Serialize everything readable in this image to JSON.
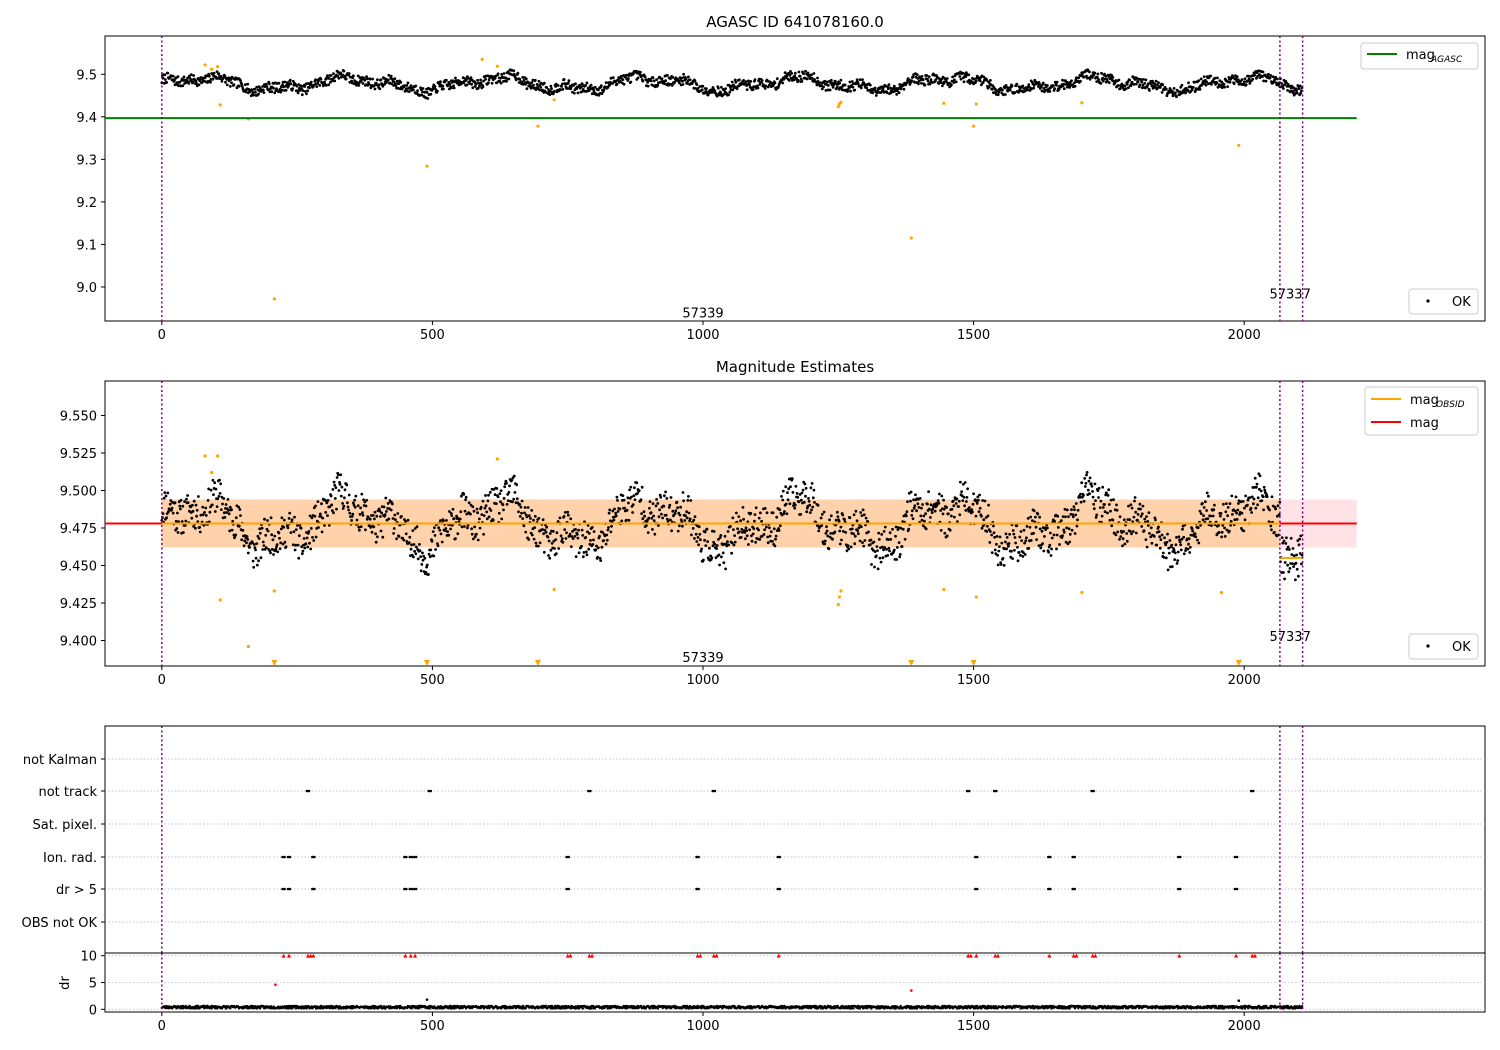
{
  "chart_data": [
    {
      "type": "scatter",
      "title": "AGASC ID 641078160.0",
      "xlim": [
        -105,
        2445
      ],
      "ylim": [
        8.92,
        9.59
      ],
      "xticks": [
        0,
        500,
        1000,
        1500,
        2000
      ],
      "yticks": [
        9.0,
        9.1,
        9.2,
        9.3,
        9.4,
        9.5
      ],
      "ytick_labels": [
        "9.0",
        "9.1",
        "9.2",
        "9.3",
        "9.4",
        "9.5"
      ],
      "vlines_x": [
        0,
        2066,
        2108
      ],
      "vline_color": "#800080",
      "obsid_labels": [
        {
          "text": "57339",
          "x": 1000,
          "y": 8.94
        },
        {
          "text": "57337",
          "x": 2085,
          "y": 8.985
        }
      ],
      "hline": {
        "y": 9.397,
        "x_range": [
          0,
          2208
        ],
        "color": "#008000"
      },
      "series": [
        {
          "name": "OK",
          "color": "#000000",
          "n": 1900
        },
        {
          "name": "",
          "color": "#ffa500",
          "x": [
            80,
            92,
            103,
            108,
            160,
            208,
            490,
            592,
            620,
            695,
            725,
            1250,
            1252,
            1255,
            1385,
            1445,
            1500,
            1505,
            1700,
            1990
          ],
          "y": [
            9.522,
            9.512,
            9.518,
            9.428,
            9.395,
            8.972,
            9.284,
            9.535,
            9.519,
            9.378,
            9.44,
            9.424,
            9.43,
            9.434,
            9.115,
            9.432,
            9.378,
            9.43,
            9.433,
            9.333
          ]
        }
      ],
      "legend_top": {
        "label": "mag",
        "subscript": "AGASC"
      },
      "legend_bottom": {
        "label": "OK"
      }
    },
    {
      "type": "scatter",
      "title": "Magnitude Estimates",
      "xlim": [
        -105,
        2445
      ],
      "ylim": [
        9.383,
        9.573
      ],
      "xticks": [
        0,
        500,
        1000,
        1500,
        2000
      ],
      "yticks": [
        9.4,
        9.425,
        9.45,
        9.475,
        9.5,
        9.525,
        9.55
      ],
      "ytick_labels": [
        "9.400",
        "9.425",
        "9.450",
        "9.475",
        "9.500",
        "9.525",
        "9.550"
      ],
      "vlines_x": [
        0,
        2066,
        2108
      ],
      "obsid_labels": [
        {
          "text": "57339",
          "x": 1000,
          "y": 9.389
        },
        {
          "text": "57337",
          "x": 2085,
          "y": 9.403
        }
      ],
      "mag_mean": 9.478,
      "mag_band": [
        9.462,
        9.494
      ],
      "band_x_range": [
        0,
        2208
      ],
      "obsid_segments": [
        {
          "x": [
            0,
            2066
          ],
          "mag": 9.478,
          "band": [
            9.462,
            9.494
          ]
        },
        {
          "x": [
            2066,
            2108
          ],
          "mag": 9.455,
          "band": [
            9.445,
            9.465
          ]
        }
      ],
      "series": [
        {
          "name": "OK",
          "color": "#000000",
          "n": 1900
        },
        {
          "name": "",
          "color": "#ffa500",
          "x": [
            80,
            92,
            103,
            108,
            160,
            208,
            620,
            725,
            1250,
            1252,
            1255,
            1445,
            1505,
            1700,
            1958
          ],
          "y": [
            9.523,
            9.512,
            9.523,
            9.427,
            9.396,
            9.433,
            9.521,
            9.434,
            9.424,
            9.429,
            9.433,
            9.434,
            9.429,
            9.432,
            9.432
          ]
        },
        {
          "name": "",
          "color": "#ffa500",
          "marker": "triangle-down",
          "x": [
            208,
            490,
            695,
            1385,
            1500,
            1990
          ],
          "y": [
            9.385,
            9.385,
            9.385,
            9.385,
            9.385,
            9.385
          ]
        }
      ],
      "legend_top": [
        {
          "label": "mag",
          "subscript": "OBSID",
          "color": "#ffa500"
        },
        {
          "label": "mag",
          "color": "#ff0000"
        }
      ],
      "legend_bottom": {
        "label": "OK"
      }
    },
    {
      "type": "scatter",
      "xlim": [
        -105,
        2445
      ],
      "vlines_x": [
        0,
        2066,
        2108
      ],
      "categories": [
        "not Kalman",
        "not track",
        "Sat. pixel.",
        "Ion. rad.",
        "dr > 5",
        "OBS not OK"
      ],
      "flag_events": {
        "not track": [
          270,
          495,
          790,
          1020,
          1490,
          1540,
          1720,
          2015
        ],
        "Ion. rad.": [
          225,
          235,
          280,
          450,
          460,
          468,
          750,
          990,
          1140,
          1505,
          1640,
          1685,
          1880,
          1985
        ],
        "dr > 5": [
          225,
          235,
          280,
          450,
          460,
          468,
          750,
          990,
          1140,
          1505,
          1640,
          1685,
          1880,
          1985
        ]
      }
    },
    {
      "type": "scatter",
      "ylabel": "dr",
      "xlim": [
        -105,
        2445
      ],
      "ylim": [
        -0.5,
        10.5
      ],
      "xticks": [
        0,
        500,
        1000,
        1500,
        2000
      ],
      "yticks": [
        0,
        5,
        10
      ],
      "ytick_labels": [
        "0",
        "5",
        "10"
      ],
      "vlines_x": [
        0,
        2066,
        2108
      ],
      "series": [
        {
          "name": "",
          "color": "#000000",
          "n": 2100,
          "y_base": 0.4
        },
        {
          "name": "",
          "color": "#ff0000",
          "marker": "triangle-up",
          "x": [
            225,
            235,
            270,
            275,
            280,
            450,
            460,
            468,
            750,
            755,
            790,
            795,
            990,
            995,
            1020,
            1025,
            1140,
            1490,
            1495,
            1505,
            1540,
            1545,
            1640,
            1685,
            1690,
            1720,
            1725,
            1880,
            1985,
            2015,
            2020
          ],
          "y": [
            10,
            10,
            10,
            10,
            10,
            10,
            10,
            10,
            10,
            10,
            10,
            10,
            10,
            10,
            10,
            10,
            10,
            10,
            10,
            10,
            10,
            10,
            10,
            10,
            10,
            10,
            10,
            10,
            10,
            10,
            10
          ]
        },
        {
          "name": "",
          "color": "#ff0000",
          "x": [
            210,
            1385
          ],
          "y": [
            4.6,
            3.5
          ]
        },
        {
          "name": "",
          "color": "#000000",
          "x": [
            490,
            1990
          ],
          "y": [
            1.8,
            1.6
          ]
        }
      ]
    }
  ]
}
